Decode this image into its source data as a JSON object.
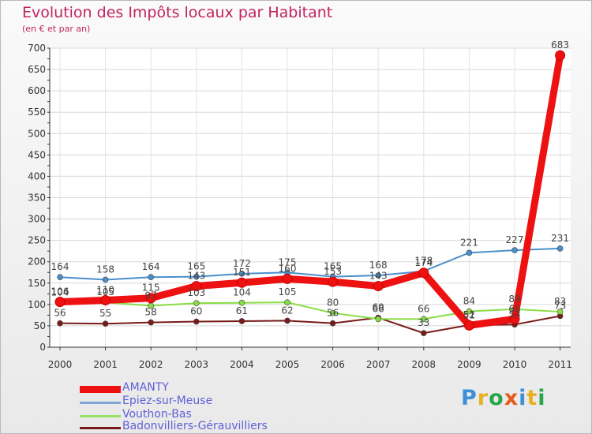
{
  "chart_data": {
    "type": "line",
    "title": "Evolution des Impôts locaux par Habitant",
    "subtitle": "(en € et par an)",
    "xlabel": "",
    "ylabel": "",
    "ylim": [
      0,
      700
    ],
    "yticks": [
      0,
      50,
      100,
      150,
      200,
      250,
      300,
      350,
      400,
      450,
      500,
      550,
      600,
      650,
      700
    ],
    "categories": [
      "2000",
      "2001",
      "2002",
      "2003",
      "2004",
      "2005",
      "2006",
      "2007",
      "2008",
      "2009",
      "2010",
      "2011"
    ],
    "grid": true,
    "series": [
      {
        "name": "AMANTY",
        "color": "#ee1111",
        "values": [
          106,
          110,
          115,
          143,
          151,
          160,
          153,
          143,
          174,
          51,
          66,
          683
        ]
      },
      {
        "name": "Epiez-sur-Meuse",
        "color": "#4a8fcc",
        "values": [
          164,
          158,
          164,
          165,
          172,
          175,
          165,
          168,
          178,
          221,
          227,
          231
        ]
      },
      {
        "name": "Vouthon-Bas",
        "color": "#88dd44",
        "values": [
          104,
          105,
          97,
          103,
          104,
          105,
          80,
          66,
          66,
          84,
          89,
          83
        ]
      },
      {
        "name": "Badonvilliers-Gérauvilliers",
        "color": "#7a1a1a",
        "values": [
          56,
          55,
          58,
          60,
          61,
          62,
          56,
          69,
          33,
          52,
          53,
          73
        ]
      }
    ]
  },
  "legend": {
    "items": [
      {
        "label": "AMANTY",
        "color": "#ee1111"
      },
      {
        "label": "Epiez-sur-Meuse",
        "color": "#7fa6d6"
      },
      {
        "label": "Vouthon-Bas",
        "color": "#99e066"
      },
      {
        "label": "Badonvilliers-Gérauvilliers",
        "color": "#7a1a1a"
      }
    ]
  },
  "brand": {
    "letters": [
      "P",
      "r",
      "o",
      "x",
      "i",
      "t",
      "i"
    ],
    "colors": [
      "#3d8fd6",
      "#e8b020",
      "#2aa64a",
      "#e85a1a",
      "#3d8fd6",
      "#e8b020",
      "#2aa64a"
    ]
  }
}
